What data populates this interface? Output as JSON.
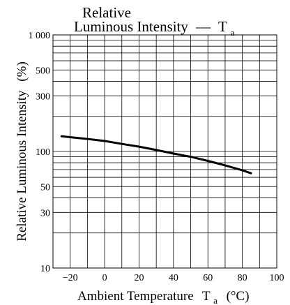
{
  "chart_data": {
    "type": "line",
    "title_line1": "Relative",
    "title_line2": "Luminous Intensity",
    "title_dash": "—",
    "title_symbol": "T",
    "title_subscript": "a",
    "xlabel": "Ambient Temperature",
    "xlabel_symbol": "T",
    "xlabel_subscript": "a",
    "xlabel_unit": "(°C)",
    "ylabel": "Relative Luminous Intensity",
    "ylabel_unit": "(%)",
    "x_scale": "linear",
    "y_scale": "log",
    "xlim": [
      -30,
      100
    ],
    "ylim": [
      10,
      1000
    ],
    "x_ticks": [
      -20,
      0,
      20,
      40,
      60,
      80,
      100
    ],
    "x_tick_labels": [
      "−20",
      "0",
      "20",
      "40",
      "60",
      "80",
      "100"
    ],
    "y_tick_labels": [
      {
        "value": 1000,
        "label": "1 000"
      },
      {
        "value": 500,
        "label": "500"
      },
      {
        "value": 300,
        "label": "300"
      },
      {
        "value": 100,
        "label": "100"
      },
      {
        "value": 50,
        "label": "50"
      },
      {
        "value": 30,
        "label": "30"
      },
      {
        "value": 10,
        "label": "10"
      }
    ],
    "grid": true,
    "grid_y_values": [
      10,
      20,
      30,
      40,
      50,
      60,
      70,
      80,
      90,
      100,
      200,
      300,
      400,
      500,
      600,
      700,
      800,
      900,
      1000
    ],
    "grid_x_values": [
      -30,
      -20,
      -10,
      0,
      10,
      20,
      30,
      40,
      50,
      60,
      70,
      80,
      90,
      100
    ],
    "series": [
      {
        "x": [
          -25,
          -10,
          0,
          10,
          20,
          30,
          40,
          50,
          60,
          70,
          80,
          85
        ],
        "y": [
          135,
          128,
          123,
          116,
          110,
          103,
          96,
          90,
          83,
          76,
          69,
          65
        ]
      }
    ]
  }
}
